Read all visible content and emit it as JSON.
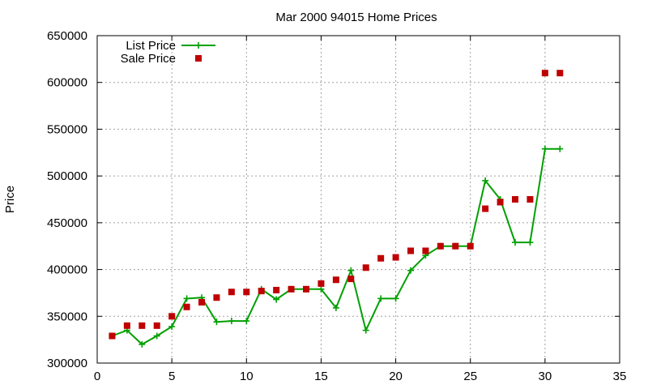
{
  "chart_data": {
    "type": "line",
    "title": "Mar 2000 94015 Home Prices",
    "xlabel": "",
    "ylabel": "Price",
    "xlim": [
      0,
      35
    ],
    "ylim": [
      300000,
      650000
    ],
    "x_ticks": [
      "0",
      "5",
      "10",
      "15",
      "20",
      "25",
      "30",
      "35"
    ],
    "y_ticks": [
      "300000",
      "350000",
      "400000",
      "450000",
      "500000",
      "550000",
      "600000",
      "650000"
    ],
    "grid": true,
    "legend_position": "top-left",
    "colors": {
      "list": "#00a000",
      "sale": "#c00000"
    },
    "series": [
      {
        "name": "List Price",
        "style": "line-plus",
        "x": [
          1,
          2,
          3,
          4,
          5,
          6,
          7,
          8,
          9,
          10,
          11,
          12,
          13,
          14,
          15,
          16,
          17,
          18,
          19,
          20,
          21,
          22,
          23,
          24,
          25,
          26,
          27,
          28,
          29,
          30,
          31
        ],
        "y": [
          329000,
          335000,
          320000,
          329000,
          339000,
          369000,
          370000,
          344000,
          345000,
          345000,
          379000,
          368000,
          379000,
          379000,
          379000,
          359000,
          399000,
          335000,
          369000,
          369000,
          399000,
          415000,
          425000,
          425000,
          425000,
          495000,
          475000,
          429000,
          429000,
          529000,
          529000
        ]
      },
      {
        "name": "Sale Price",
        "style": "square",
        "x": [
          1,
          2,
          3,
          4,
          5,
          6,
          7,
          8,
          9,
          10,
          11,
          12,
          13,
          14,
          15,
          16,
          17,
          18,
          19,
          20,
          21,
          22,
          23,
          24,
          25,
          26,
          27,
          28,
          29,
          30,
          31
        ],
        "y": [
          329000,
          340000,
          340000,
          340000,
          350000,
          360000,
          365000,
          370000,
          376000,
          376000,
          377000,
          378000,
          379000,
          379000,
          385000,
          389000,
          390000,
          402000,
          412000,
          413000,
          420000,
          420000,
          425000,
          425000,
          425000,
          465000,
          472000,
          475000,
          475000,
          610000,
          610000
        ]
      }
    ]
  }
}
